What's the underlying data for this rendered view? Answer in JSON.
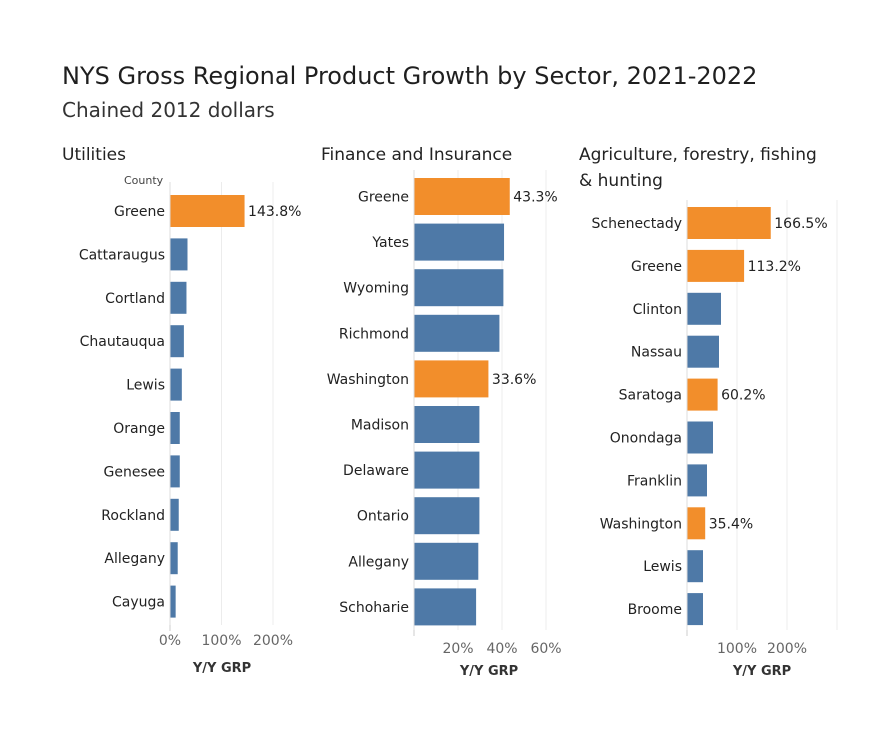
{
  "header": {
    "title": "NYS Gross Regional Product Growth by Sector, 2021-2022",
    "subtitle": "Chained 2012 dollars",
    "county_header": "County"
  },
  "colors": {
    "highlight": "#F28E2B",
    "default": "#4E79A7",
    "grid": "#ececec"
  },
  "chart_data": [
    {
      "type": "bar",
      "orientation": "horizontal",
      "title": "Utilities",
      "xlabel": "Y/Y GRP",
      "ylabel": "County",
      "xlim": [
        0,
        270
      ],
      "xticks": [
        0,
        100,
        200
      ],
      "xtick_labels": [
        "0%",
        "100%",
        "200%"
      ],
      "categories": [
        "Greene",
        "Cattaraugus",
        "Cortland",
        "Chautauqua",
        "Lewis",
        "Orange",
        "Genesee",
        "Rockland",
        "Allegany",
        "Cayuga"
      ],
      "values": [
        143.8,
        33,
        31,
        26,
        22,
        18,
        18,
        16,
        14,
        10
      ],
      "highlighted": [
        true,
        false,
        false,
        false,
        false,
        false,
        false,
        false,
        false,
        false
      ],
      "data_labels": [
        "143.8%",
        "",
        "",
        "",
        "",
        "",
        "",
        "",
        "",
        ""
      ]
    },
    {
      "type": "bar",
      "orientation": "horizontal",
      "title": "Finance and Insurance",
      "xlabel": "Y/Y GRP",
      "ylabel": "",
      "xlim": [
        0,
        70
      ],
      "xticks": [
        20,
        40,
        60
      ],
      "xtick_labels": [
        "20%",
        "40%",
        "60%"
      ],
      "categories": [
        "Greene",
        "Yates",
        "Wyoming",
        "Richmond",
        "Washington",
        "Madison",
        "Delaware",
        "Ontario",
        "Allegany",
        "Schoharie"
      ],
      "values": [
        43.3,
        40.7,
        40.4,
        38.6,
        33.6,
        29.5,
        29.5,
        29.5,
        29.0,
        28.0
      ],
      "highlighted": [
        true,
        false,
        false,
        false,
        true,
        false,
        false,
        false,
        false,
        false
      ],
      "data_labels": [
        "43.3%",
        "",
        "",
        "",
        "33.6%",
        "",
        "",
        "",
        "",
        ""
      ]
    },
    {
      "type": "bar",
      "orientation": "horizontal",
      "title": "Agriculture, forestry, fishing & hunting",
      "xlabel": "Y/Y GRP",
      "ylabel": "",
      "xlim": [
        0,
        300
      ],
      "xticks": [
        100,
        200
      ],
      "xtick_labels": [
        "100%",
        "200%"
      ],
      "categories": [
        "Schenectady",
        "Greene",
        "Clinton",
        "Nassau",
        "Saratoga",
        "Onondaga",
        "Franklin",
        "Washington",
        "Lewis",
        "Broome"
      ],
      "values": [
        166.5,
        113.2,
        67,
        63,
        60.2,
        51,
        39,
        35.4,
        31,
        31
      ],
      "highlighted": [
        true,
        true,
        false,
        false,
        true,
        false,
        false,
        true,
        false,
        false
      ],
      "data_labels": [
        "166.5%",
        "113.2%",
        "",
        "",
        "60.2%",
        "",
        "",
        "35.4%",
        "",
        ""
      ]
    }
  ]
}
